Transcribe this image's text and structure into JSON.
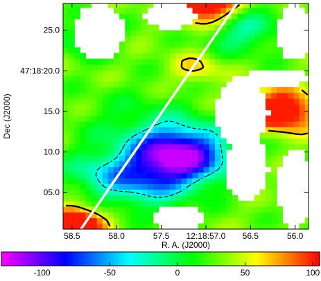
{
  "chart_data": {
    "type": "heatmap",
    "title": "",
    "xlabel": "R. A. (J2000)",
    "ylabel": "Dec (J2000)",
    "x_ticks": [
      {
        "value": 58.5,
        "label": "58.5"
      },
      {
        "value": 58.0,
        "label": "58.0"
      },
      {
        "value": 57.5,
        "label": "57.5"
      },
      {
        "value": 57.0,
        "label": "12:18:57.0"
      },
      {
        "value": 56.5,
        "label": "56.5"
      },
      {
        "value": 56.0,
        "label": "56.0"
      }
    ],
    "y_ticks": [
      {
        "value": 5.0,
        "label": "05.0"
      },
      {
        "value": 10.0,
        "label": "10.0"
      },
      {
        "value": 15.0,
        "label": "15.0"
      },
      {
        "value": 20.0,
        "label": "47:18:20.0"
      },
      {
        "value": 25.0,
        "label": "25.0"
      }
    ],
    "colorbar": {
      "range": [
        -130,
        105
      ],
      "ticks": [
        {
          "value": -100,
          "label": "-100"
        },
        {
          "value": -50,
          "label": "-50"
        },
        {
          "value": 0,
          "label": "0"
        },
        {
          "value": 50,
          "label": "50"
        },
        {
          "value": 100,
          "label": "100"
        }
      ],
      "colormap": [
        "#ff00ff",
        "#0000ff",
        "#00ffff",
        "#00ff00",
        "#ffff00",
        "#ff0000"
      ]
    },
    "field": {
      "x_range": [
        58.6,
        55.85
      ],
      "y_range": [
        0.5,
        28.3
      ],
      "cell_size_arcsec": 0.7,
      "value_range": [
        -120,
        100
      ],
      "components": [
        {
          "ra": 58.45,
          "dec": 1.2,
          "amplitude": 120,
          "width": 1.1
        },
        {
          "ra": 57.0,
          "dec": 28.3,
          "amplitude": 110,
          "width": 1.4
        },
        {
          "ra": 56.15,
          "dec": 15.1,
          "amplitude": 105,
          "width": 1.4
        },
        {
          "ra": 57.1,
          "dec": 20.3,
          "amplitude": 35,
          "width": 1.0
        },
        {
          "ra": 57.3,
          "dec": 9.6,
          "amplitude": -150,
          "width": 2.0
        },
        {
          "ra": 57.75,
          "dec": 6.2,
          "amplitude": -60,
          "width": 1.8
        },
        {
          "ra": 58.25,
          "dec": 7.5,
          "amplitude": -35,
          "width": 1.5
        },
        {
          "ra": 58.3,
          "dec": 23.8,
          "amplitude": -40,
          "width": 1.2
        },
        {
          "ra": 56.6,
          "dec": 25.2,
          "amplitude": -50,
          "width": 1.6
        },
        {
          "ra": 57.8,
          "dec": 13.5,
          "amplitude": -20,
          "width": 2.5
        }
      ],
      "blank_regions": [
        {
          "ra": 58.2,
          "dec": 24.8,
          "ra_half_width": 0.28,
          "dec_half_height": 3.6
        },
        {
          "ra": 57.4,
          "dec": 26.8,
          "ra_half_width": 0.3,
          "dec_half_height": 1.6
        },
        {
          "ra": 56.0,
          "dec": 24.8,
          "ra_half_width": 0.2,
          "dec_half_height": 3.6
        },
        {
          "ra": 56.2,
          "dec": 19.2,
          "ra_half_width": 0.35,
          "dec_half_height": 1.2
        },
        {
          "ra": 56.6,
          "dec": 15.0,
          "ra_half_width": 0.3,
          "dec_half_height": 4.2
        },
        {
          "ra": 56.55,
          "dec": 8.0,
          "ra_half_width": 0.25,
          "dec_half_height": 4.0
        },
        {
          "ra": 56.0,
          "dec": 5.5,
          "ra_half_width": 0.2,
          "dec_half_height": 5.0
        },
        {
          "ra": 57.3,
          "dec": 2.0,
          "ra_half_width": 0.3,
          "dec_half_height": 1.6
        }
      ],
      "solid_contour_level": 60,
      "dashed_contour_level": -30
    },
    "line": {
      "start": {
        "ra": 58.4,
        "dec": 0.5
      },
      "end": {
        "ra": 56.65,
        "dec": 28.3
      },
      "color": "#ffffff"
    },
    "grid": false,
    "legend": "none"
  }
}
